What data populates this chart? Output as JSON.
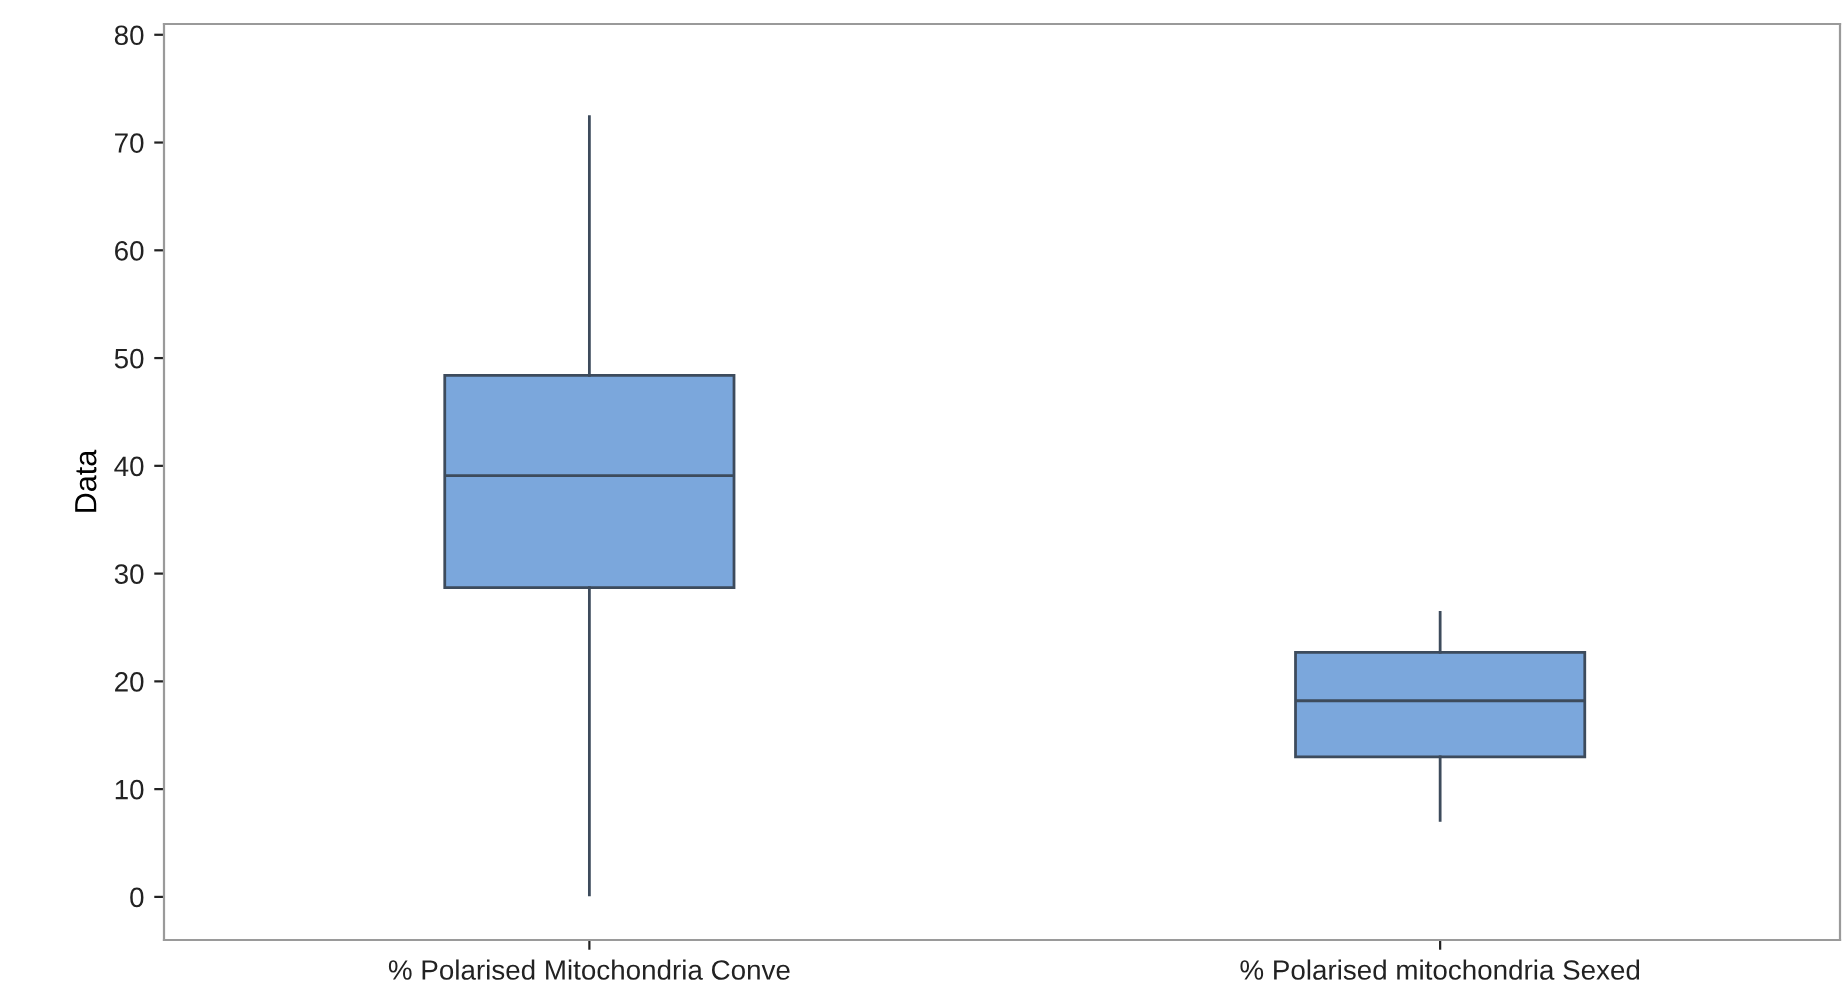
{
  "chart_data": {
    "type": "box",
    "ylabel": "Data",
    "categories": [
      "% Polarised Mitochondria Conve",
      "% Polarised mitochondria Sexed"
    ],
    "boxes": [
      {
        "low": 0.2,
        "q1": 28.7,
        "median": 39.1,
        "q3": 48.4,
        "high": 72.4
      },
      {
        "low": 7.1,
        "q1": 13.0,
        "median": 18.2,
        "q3": 22.7,
        "high": 26.4
      }
    ],
    "color": "#7ba7dc",
    "ylim": [
      -4,
      81
    ],
    "yticks": [
      0,
      10,
      20,
      30,
      40,
      50,
      60,
      70,
      80
    ],
    "grid": false
  }
}
